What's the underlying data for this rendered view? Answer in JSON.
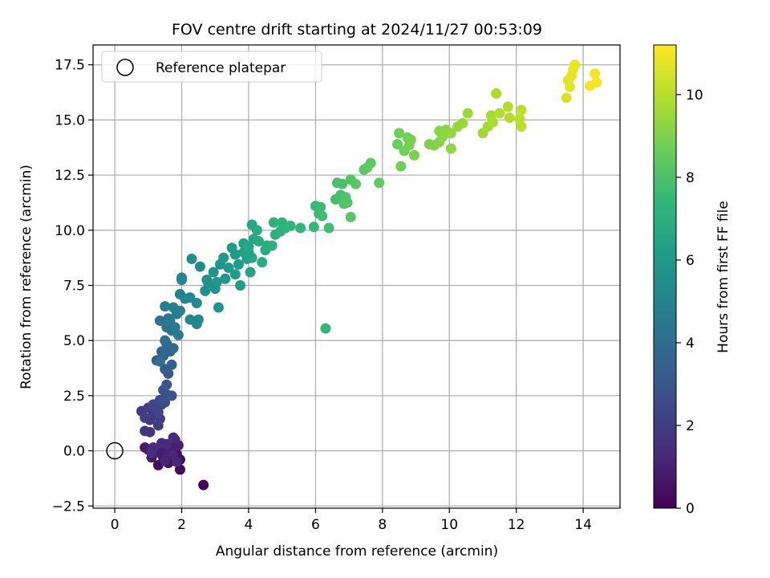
{
  "chart_data": {
    "type": "scatter",
    "title": "FOV centre drift starting at 2024/11/27 00:53:09",
    "xlabel": "Angular distance from reference (arcmin)",
    "ylabel": "Rotation from reference (arcmin)",
    "xlim": [
      -0.65,
      15.1
    ],
    "ylim": [
      -2.6,
      18.4
    ],
    "xticks": [
      0,
      2,
      4,
      6,
      8,
      10,
      12,
      14
    ],
    "yticks": [
      -2.5,
      0.0,
      2.5,
      5.0,
      7.5,
      10.0,
      12.5,
      15.0,
      17.5
    ],
    "xtick_labels": [
      "0",
      "2",
      "4",
      "6",
      "8",
      "10",
      "12",
      "14"
    ],
    "ytick_labels": [
      "−2.5",
      "0.0",
      "2.5",
      "5.0",
      "7.5",
      "10.0",
      "12.5",
      "15.0",
      "17.5"
    ],
    "grid": true,
    "legend": {
      "placement": "top-left",
      "label": "Reference platepar"
    },
    "reference_point": {
      "x": 0,
      "y": 0
    },
    "colorbar": {
      "label": "Hours from first FF file",
      "min": 0,
      "max": 11.2,
      "ticks": [
        0,
        2,
        4,
        6,
        8,
        10
      ],
      "tick_labels": [
        "0",
        "2",
        "4",
        "6",
        "8",
        "10"
      ],
      "colormap": "viridis",
      "stops": [
        "#440154",
        "#482878",
        "#3e4989",
        "#31688e",
        "#26828e",
        "#1f9e89",
        "#35b779",
        "#6ece58",
        "#b5de2b",
        "#fde725"
      ]
    },
    "points": [
      [
        2.65,
        -1.55,
        0.1
      ],
      [
        1.95,
        -0.85,
        0.2
      ],
      [
        1.95,
        -0.4,
        0.3
      ],
      [
        1.3,
        -0.65,
        0.3
      ],
      [
        1.6,
        -0.55,
        0.35
      ],
      [
        1.75,
        -0.45,
        0.4
      ],
      [
        1.85,
        -0.15,
        0.45
      ],
      [
        1.45,
        -0.3,
        0.5
      ],
      [
        1.1,
        -0.3,
        0.55
      ],
      [
        1.5,
        0.1,
        0.6
      ],
      [
        1.8,
        0.35,
        0.65
      ],
      [
        1.7,
        0.2,
        0.7
      ],
      [
        1.2,
        0.0,
        0.75
      ],
      [
        1.0,
        0.05,
        0.8
      ],
      [
        0.9,
        0.15,
        0.85
      ],
      [
        1.35,
        -0.1,
        0.9
      ],
      [
        1.65,
        0.05,
        0.95
      ],
      [
        1.8,
        0.5,
        1.0
      ],
      [
        1.6,
        -0.15,
        1.05
      ],
      [
        1.9,
        0.25,
        1.1
      ],
      [
        1.5,
        -0.45,
        1.15
      ],
      [
        1.75,
        -0.2,
        1.2
      ],
      [
        1.85,
        -0.5,
        1.3
      ],
      [
        1.55,
        0.3,
        1.35
      ],
      [
        1.4,
        0.35,
        1.4
      ],
      [
        1.75,
        0.6,
        1.45
      ],
      [
        1.15,
        0.15,
        1.5
      ],
      [
        1.1,
        -0.1,
        1.55
      ],
      [
        0.9,
        0.9,
        1.65
      ],
      [
        1.05,
        0.85,
        1.75
      ],
      [
        0.8,
        1.8,
        1.85
      ],
      [
        1.15,
        1.65,
        1.9
      ],
      [
        1.05,
        1.4,
        1.95
      ],
      [
        1.3,
        1.15,
        2.0
      ],
      [
        1.0,
        1.95,
        2.05
      ],
      [
        1.35,
        1.45,
        2.1
      ],
      [
        0.9,
        1.5,
        2.15
      ],
      [
        1.2,
        1.9,
        2.2
      ],
      [
        1.4,
        2.1,
        2.3
      ],
      [
        1.3,
        1.75,
        2.35
      ],
      [
        1.15,
        2.1,
        2.4
      ],
      [
        1.5,
        2.2,
        2.5
      ],
      [
        1.35,
        2.3,
        2.6
      ],
      [
        1.55,
        2.55,
        2.7
      ],
      [
        1.45,
        2.75,
        2.8
      ],
      [
        1.7,
        2.5,
        2.9
      ],
      [
        1.55,
        3.0,
        3.0
      ],
      [
        1.6,
        3.5,
        3.1
      ],
      [
        1.5,
        3.7,
        3.2
      ],
      [
        1.25,
        4.1,
        3.3
      ],
      [
        1.7,
        3.9,
        3.4
      ],
      [
        1.45,
        4.3,
        3.5
      ],
      [
        1.65,
        4.5,
        3.6
      ],
      [
        1.4,
        4.5,
        3.7
      ],
      [
        1.55,
        4.85,
        3.8
      ],
      [
        1.75,
        4.65,
        3.9
      ],
      [
        1.5,
        5.0,
        4.0
      ],
      [
        1.35,
        4.05,
        4.05
      ],
      [
        1.35,
        5.9,
        4.1
      ],
      [
        1.55,
        5.6,
        4.2
      ],
      [
        1.7,
        5.45,
        4.3
      ],
      [
        1.6,
        6.0,
        4.4
      ],
      [
        1.8,
        5.6,
        4.5
      ],
      [
        1.9,
        5.25,
        4.55
      ],
      [
        1.65,
        5.9,
        4.6
      ],
      [
        1.5,
        6.55,
        4.7
      ],
      [
        1.75,
        6.5,
        4.75
      ],
      [
        1.95,
        6.35,
        4.8
      ],
      [
        1.85,
        6.2,
        4.85
      ],
      [
        1.95,
        7.1,
        4.9
      ],
      [
        2.0,
        7.85,
        5.0
      ],
      [
        2.0,
        7.75,
        5.05
      ],
      [
        2.1,
        6.9,
        5.1
      ],
      [
        2.25,
        5.95,
        5.15
      ],
      [
        2.45,
        5.75,
        5.2
      ],
      [
        2.5,
        5.95,
        5.25
      ],
      [
        2.25,
        6.95,
        5.3
      ],
      [
        2.45,
        6.7,
        5.35
      ],
      [
        2.3,
        8.7,
        5.4
      ],
      [
        2.55,
        8.35,
        5.45
      ],
      [
        2.7,
        7.25,
        5.5
      ],
      [
        2.8,
        7.6,
        5.55
      ],
      [
        2.75,
        7.75,
        5.6
      ],
      [
        3.0,
        7.35,
        5.65
      ],
      [
        2.95,
        8.1,
        5.7
      ],
      [
        3.1,
        6.5,
        5.75
      ],
      [
        3.15,
        8.45,
        5.8
      ],
      [
        3.05,
        7.65,
        5.85
      ],
      [
        3.3,
        7.8,
        5.9
      ],
      [
        3.4,
        8.3,
        5.95
      ],
      [
        3.25,
        8.75,
        6.0
      ],
      [
        3.5,
        9.2,
        6.05
      ],
      [
        3.7,
        8.45,
        6.1
      ],
      [
        3.6,
        8.9,
        6.15
      ],
      [
        3.75,
        7.5,
        6.2
      ],
      [
        3.6,
        8.0,
        6.25
      ],
      [
        3.85,
        9.0,
        6.3
      ],
      [
        3.85,
        9.4,
        6.35
      ],
      [
        3.95,
        8.7,
        6.4
      ],
      [
        4.0,
        9.0,
        6.45
      ],
      [
        4.05,
        8.1,
        6.5
      ],
      [
        4.1,
        8.75,
        6.55
      ],
      [
        4.0,
        9.25,
        6.6
      ],
      [
        4.15,
        9.6,
        6.65
      ],
      [
        4.1,
        10.25,
        6.7
      ],
      [
        4.3,
        9.5,
        6.75
      ],
      [
        4.25,
        10.0,
        6.8
      ],
      [
        4.4,
        8.55,
        6.85
      ],
      [
        4.5,
        9.1,
        6.9
      ],
      [
        4.55,
        9.3,
        6.95
      ],
      [
        4.8,
        9.8,
        7.0
      ],
      [
        4.7,
        9.3,
        7.05
      ],
      [
        4.95,
        9.95,
        7.1
      ],
      [
        4.75,
        10.35,
        7.15
      ],
      [
        5.0,
        10.35,
        7.2
      ],
      [
        5.1,
        10.1,
        7.25
      ],
      [
        5.25,
        10.2,
        7.3
      ],
      [
        5.55,
        10.1,
        7.35
      ],
      [
        6.3,
        5.55,
        7.4
      ],
      [
        5.95,
        10.15,
        7.5
      ],
      [
        6.0,
        11.1,
        7.55
      ],
      [
        6.1,
        10.75,
        7.6
      ],
      [
        6.15,
        11.05,
        7.65
      ],
      [
        6.2,
        10.65,
        7.7
      ],
      [
        6.4,
        10.1,
        7.75
      ],
      [
        6.6,
        11.4,
        7.8
      ],
      [
        6.65,
        12.15,
        7.85
      ],
      [
        6.75,
        11.6,
        7.9
      ],
      [
        6.8,
        12.1,
        7.95
      ],
      [
        6.85,
        11.2,
        8.0
      ],
      [
        6.9,
        11.5,
        8.05
      ],
      [
        6.95,
        11.25,
        8.1
      ],
      [
        7.05,
        12.3,
        8.15
      ],
      [
        7.05,
        10.6,
        8.2
      ],
      [
        7.2,
        12.1,
        8.25
      ],
      [
        7.45,
        12.75,
        8.3
      ],
      [
        7.55,
        12.85,
        8.35
      ],
      [
        7.65,
        13.05,
        8.4
      ],
      [
        7.9,
        12.15,
        8.45
      ],
      [
        8.45,
        13.9,
        8.6
      ],
      [
        8.5,
        14.4,
        8.65
      ],
      [
        8.55,
        12.9,
        8.7
      ],
      [
        8.65,
        13.6,
        8.75
      ],
      [
        8.75,
        14.2,
        8.8
      ],
      [
        8.8,
        13.85,
        8.85
      ],
      [
        8.85,
        14.1,
        8.9
      ],
      [
        8.95,
        13.4,
        8.95
      ],
      [
        9.4,
        13.9,
        9.0
      ],
      [
        9.55,
        13.85,
        9.05
      ],
      [
        9.7,
        14.0,
        9.1
      ],
      [
        9.7,
        14.5,
        9.15
      ],
      [
        9.8,
        14.25,
        9.2
      ],
      [
        9.9,
        14.55,
        9.25
      ],
      [
        10.05,
        13.7,
        9.3
      ],
      [
        10.05,
        14.4,
        9.35
      ],
      [
        10.25,
        14.7,
        9.4
      ],
      [
        10.4,
        14.85,
        9.45
      ],
      [
        10.55,
        15.3,
        9.5
      ],
      [
        11.0,
        14.4,
        9.6
      ],
      [
        11.15,
        14.7,
        9.65
      ],
      [
        11.25,
        15.2,
        9.7
      ],
      [
        11.3,
        14.9,
        9.75
      ],
      [
        11.4,
        16.2,
        9.8
      ],
      [
        11.5,
        15.3,
        9.85
      ],
      [
        11.75,
        15.6,
        9.9
      ],
      [
        11.8,
        15.1,
        9.95
      ],
      [
        12.1,
        15.05,
        10.0
      ],
      [
        12.15,
        14.7,
        10.05
      ],
      [
        12.15,
        15.45,
        10.1
      ],
      [
        13.5,
        16.0,
        10.6
      ],
      [
        13.55,
        16.8,
        10.7
      ],
      [
        13.6,
        16.5,
        10.75
      ],
      [
        13.65,
        17.0,
        10.8
      ],
      [
        13.7,
        17.3,
        10.85
      ],
      [
        13.75,
        17.5,
        10.9
      ],
      [
        14.2,
        16.55,
        11.0
      ],
      [
        14.35,
        17.1,
        11.05
      ],
      [
        14.4,
        16.7,
        11.1
      ]
    ]
  }
}
